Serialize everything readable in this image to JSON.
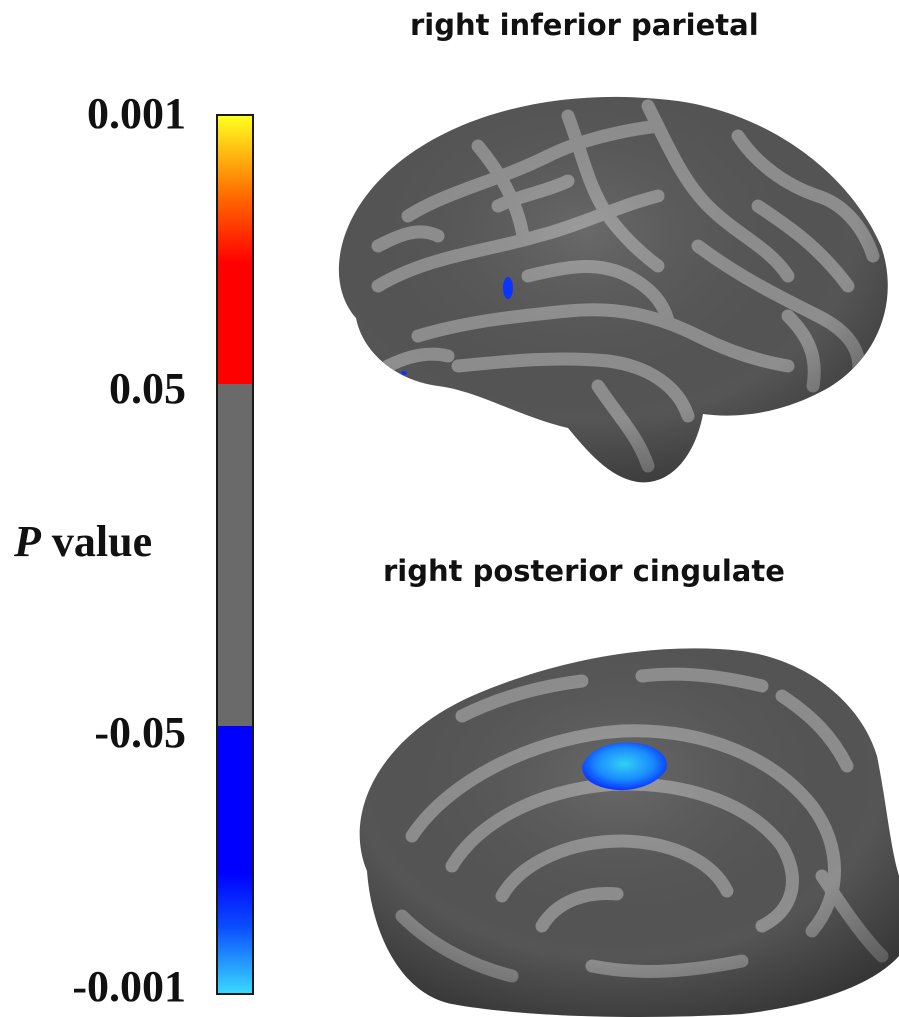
{
  "legend": {
    "title_italic": "P",
    "title_rest": " value",
    "ticks": [
      "0.001",
      "0.05",
      "-0.05",
      "-0.001"
    ],
    "colors": {
      "positive_top": "#ffff20",
      "positive_mid": "#ff6a00",
      "positive_bottom": "#ff0000",
      "neutral": "#6a6a6a",
      "negative_top": "#0000ff",
      "negative_mid": "#0a4cff",
      "negative_bottom": "#3ad8ff"
    }
  },
  "panels": [
    {
      "title": "right inferior parietal",
      "view": "lateral"
    },
    {
      "title": "right posterior cingulate",
      "view": "medial"
    }
  ],
  "colors": {
    "sulcus": "#555555",
    "gyrus": "#8e8e8e",
    "cluster_core": "#34d0f4",
    "cluster_edge": "#0a35ff"
  }
}
